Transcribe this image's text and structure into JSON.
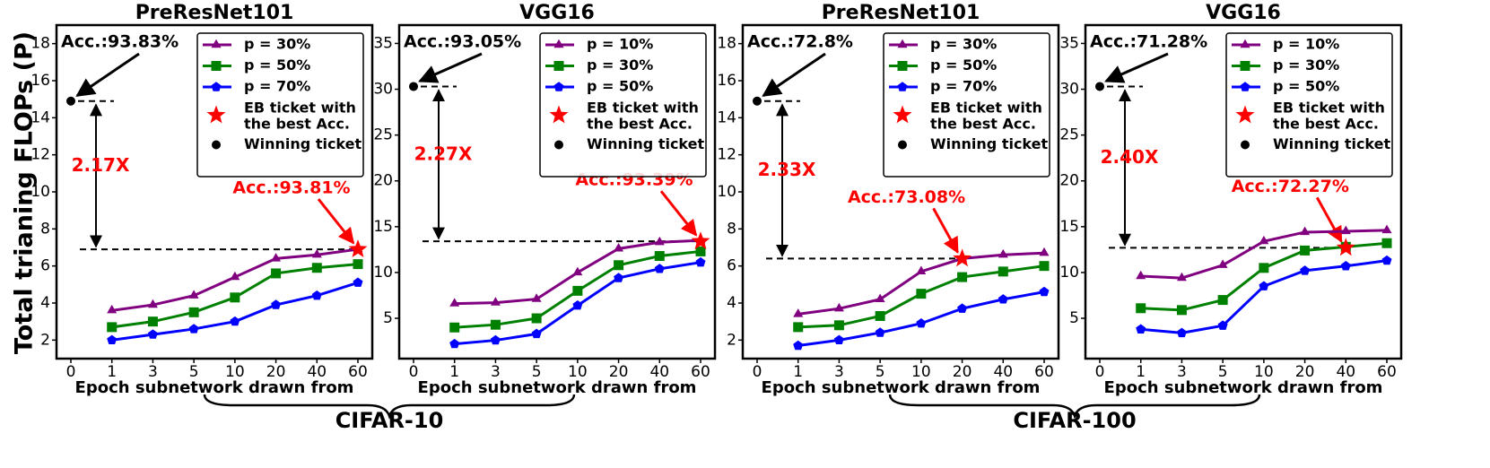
{
  "y_label": "Total trianing FLOPs (P)",
  "groups": [
    {
      "label": "CIFAR-10"
    },
    {
      "label": "CIFAR-100"
    }
  ],
  "chart_data": [
    {
      "type": "line",
      "title": "PreResNet101",
      "x_label": "Epoch subnetwork drawn from",
      "categories": [
        "0",
        "1",
        "3",
        "5",
        "10",
        "20",
        "40",
        "60"
      ],
      "ylim": [
        1,
        19
      ],
      "yticks": [
        2,
        4,
        6,
        8,
        10,
        12,
        14,
        16,
        18
      ],
      "series": [
        {
          "name": "p = 30%",
          "color": "#800080",
          "marker": "triangle",
          "values": [
            null,
            3.6,
            3.9,
            4.4,
            5.4,
            6.4,
            6.6,
            6.9
          ]
        },
        {
          "name": "p = 50%",
          "color": "#008000",
          "marker": "square",
          "values": [
            null,
            2.7,
            3.0,
            3.5,
            4.3,
            5.6,
            5.9,
            6.1
          ]
        },
        {
          "name": "p = 70%",
          "color": "#0000ff",
          "marker": "pentagon",
          "values": [
            null,
            2.0,
            2.3,
            2.6,
            3.0,
            3.9,
            4.4,
            5.1
          ]
        },
        {
          "name": "EB ticket with the best Acc.",
          "color": "#ff0000",
          "marker": "star",
          "values": [
            null,
            null,
            null,
            null,
            null,
            null,
            null,
            6.9
          ]
        },
        {
          "name": "Winning ticket",
          "color": "#000000",
          "marker": "circle",
          "values": [
            14.9,
            null,
            null,
            null,
            null,
            null,
            null,
            null
          ]
        }
      ],
      "annotations": {
        "winning_acc": "Acc.:93.83%",
        "eb_acc": "Acc.:93.81%",
        "speedup": "2.17X"
      }
    },
    {
      "type": "line",
      "title": "VGG16",
      "x_label": "Epoch subnetwork drawn from",
      "categories": [
        "0",
        "1",
        "3",
        "5",
        "10",
        "20",
        "40",
        "60"
      ],
      "ylim": [
        0.6,
        37
      ],
      "yticks": [
        5,
        10,
        15,
        20,
        25,
        30,
        35
      ],
      "series": [
        {
          "name": "p = 10%",
          "color": "#800080",
          "marker": "triangle",
          "values": [
            null,
            6.6,
            6.7,
            7.1,
            10.0,
            12.6,
            13.3,
            13.5
          ]
        },
        {
          "name": "p = 30%",
          "color": "#008000",
          "marker": "square",
          "values": [
            null,
            4.0,
            4.3,
            5.0,
            8.0,
            10.8,
            11.8,
            12.3
          ]
        },
        {
          "name": "p = 50%",
          "color": "#0000ff",
          "marker": "pentagon",
          "values": [
            null,
            2.2,
            2.6,
            3.3,
            6.4,
            9.4,
            10.4,
            11.1
          ]
        },
        {
          "name": "EB ticket with the best Acc.",
          "color": "#ff0000",
          "marker": "star",
          "values": [
            null,
            null,
            null,
            null,
            null,
            null,
            null,
            13.4
          ]
        },
        {
          "name": "Winning ticket",
          "color": "#000000",
          "marker": "circle",
          "values": [
            30.3,
            null,
            null,
            null,
            null,
            null,
            null,
            null
          ]
        }
      ],
      "annotations": {
        "winning_acc": "Acc.:93.05%",
        "eb_acc": "Acc.:93.39%",
        "speedup": "2.27X"
      }
    },
    {
      "type": "line",
      "title": "PreResNet101",
      "x_label": "Epoch subnetwork drawn from",
      "categories": [
        "0",
        "1",
        "3",
        "5",
        "10",
        "20",
        "40",
        "60"
      ],
      "ylim": [
        1,
        19
      ],
      "yticks": [
        2,
        4,
        6,
        8,
        10,
        12,
        14,
        16,
        18
      ],
      "series": [
        {
          "name": "p = 30%",
          "color": "#800080",
          "marker": "triangle",
          "values": [
            null,
            3.4,
            3.7,
            4.2,
            5.7,
            6.4,
            6.6,
            6.7
          ]
        },
        {
          "name": "p = 50%",
          "color": "#008000",
          "marker": "square",
          "values": [
            null,
            2.7,
            2.8,
            3.3,
            4.5,
            5.4,
            5.7,
            6.0
          ]
        },
        {
          "name": "p = 70%",
          "color": "#0000ff",
          "marker": "pentagon",
          "values": [
            null,
            1.7,
            2.0,
            2.4,
            2.9,
            3.7,
            4.2,
            4.6
          ]
        },
        {
          "name": "EB ticket with the best Acc.",
          "color": "#ff0000",
          "marker": "star",
          "values": [
            null,
            null,
            null,
            null,
            null,
            6.4,
            null,
            null
          ]
        },
        {
          "name": "Winning ticket",
          "color": "#000000",
          "marker": "circle",
          "values": [
            14.9,
            null,
            null,
            null,
            null,
            null,
            null,
            null
          ]
        }
      ],
      "annotations": {
        "winning_acc": "Acc.:72.8%",
        "eb_acc": "Acc.:73.08%",
        "speedup": "2.33X"
      }
    },
    {
      "type": "line",
      "title": "VGG16",
      "x_label": "Epoch subnetwork drawn from",
      "categories": [
        "0",
        "1",
        "3",
        "5",
        "10",
        "20",
        "40",
        "60"
      ],
      "ylim": [
        0.6,
        37
      ],
      "yticks": [
        5,
        10,
        15,
        20,
        25,
        30,
        35
      ],
      "series": [
        {
          "name": "p = 10%",
          "color": "#800080",
          "marker": "triangle",
          "values": [
            null,
            9.6,
            9.4,
            10.8,
            13.4,
            14.4,
            14.5,
            14.6
          ]
        },
        {
          "name": "p = 30%",
          "color": "#008000",
          "marker": "square",
          "values": [
            null,
            6.1,
            5.9,
            7.0,
            10.5,
            12.4,
            12.8,
            13.2
          ]
        },
        {
          "name": "p = 50%",
          "color": "#0000ff",
          "marker": "pentagon",
          "values": [
            null,
            3.8,
            3.4,
            4.2,
            8.5,
            10.2,
            10.7,
            11.3
          ]
        },
        {
          "name": "EB ticket with the best Acc.",
          "color": "#ff0000",
          "marker": "star",
          "values": [
            null,
            null,
            null,
            null,
            null,
            null,
            12.7,
            null
          ]
        },
        {
          "name": "Winning ticket",
          "color": "#000000",
          "marker": "circle",
          "values": [
            30.3,
            null,
            null,
            null,
            null,
            null,
            null,
            null
          ]
        }
      ],
      "annotations": {
        "winning_acc": "Acc.:71.28%",
        "eb_acc": "Acc.:72.27%",
        "speedup": "2.40X"
      }
    }
  ]
}
